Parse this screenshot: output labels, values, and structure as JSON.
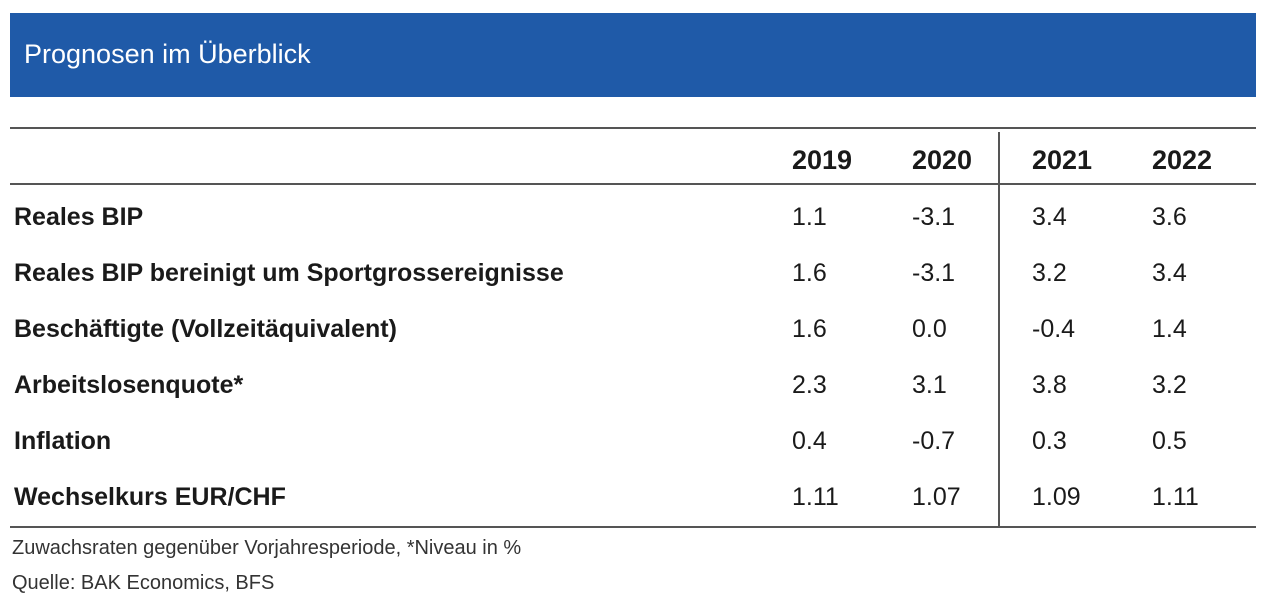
{
  "title": "Prognosen im Überblick",
  "years": [
    "2019",
    "2020",
    "2021",
    "2022"
  ],
  "rows": [
    {
      "label": "Reales BIP",
      "values": [
        "1.1",
        "-3.1",
        "3.4",
        "3.6"
      ]
    },
    {
      "label": "Reales BIP bereinigt um Sportgrossereignisse",
      "values": [
        "1.6",
        "-3.1",
        "3.2",
        "3.4"
      ]
    },
    {
      "label": "Beschäftigte (Vollzeitäquivalent)",
      "values": [
        "1.6",
        "0.0",
        "-0.4",
        "1.4"
      ]
    },
    {
      "label": "Arbeitslosenquote*",
      "values": [
        "2.3",
        "3.1",
        "3.8",
        "3.2"
      ]
    },
    {
      "label": "Inflation",
      "values": [
        "0.4",
        "-0.7",
        "0.3",
        "0.5"
      ]
    },
    {
      "label": "Wechselkurs EUR/CHF",
      "values": [
        "1.11",
        "1.07",
        "1.09",
        "1.11"
      ]
    }
  ],
  "footnote": "Zuwachsraten gegenüber Vorjahresperiode, *Niveau in %",
  "source": "Quelle: BAK Economics, BFS",
  "colors": {
    "banner": "#1f5aa8",
    "banner_text": "#ffffff",
    "rules": "#555555"
  }
}
